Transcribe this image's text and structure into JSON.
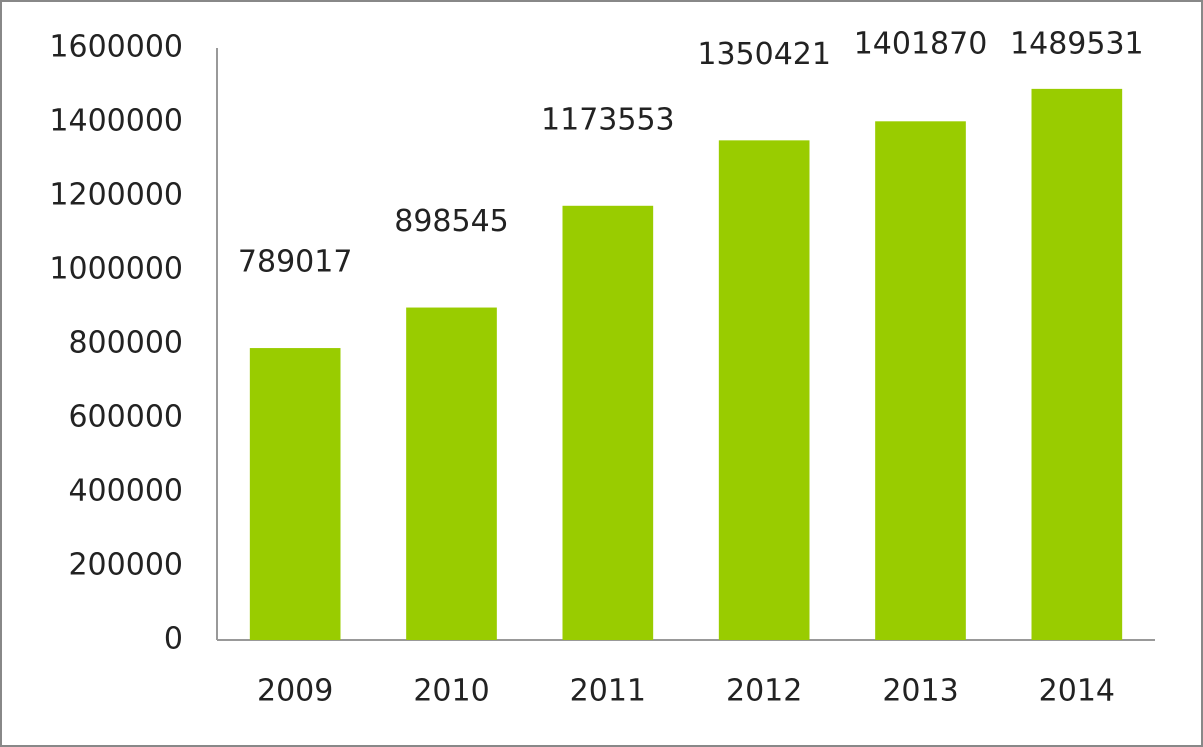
{
  "chart_data": {
    "type": "bar",
    "categories": [
      "2009",
      "2010",
      "2011",
      "2012",
      "2013",
      "2014"
    ],
    "values": [
      789017,
      898545,
      1173553,
      1350421,
      1401870,
      1489531
    ],
    "color": "#99cc00",
    "ylim": [
      0,
      1600000
    ],
    "yticks": [
      0,
      200000,
      400000,
      600000,
      800000,
      1000000,
      1200000,
      1400000,
      1600000
    ],
    "grid": false
  }
}
